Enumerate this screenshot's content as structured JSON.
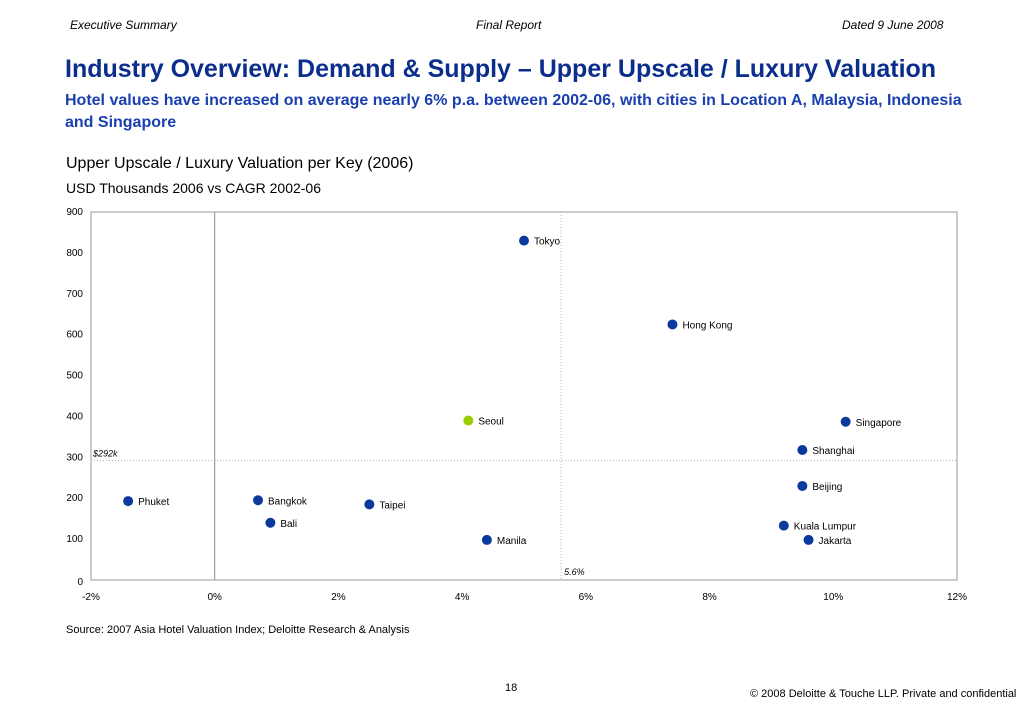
{
  "header": {
    "left": "Executive Summary",
    "center": "Final Report",
    "right": "Dated 9 June 2008"
  },
  "slide": {
    "title": "Industry Overview: Demand & Supply – Upper Upscale / Luxury Valuation",
    "subtitle": "Hotel values have increased on average nearly 6% p.a. between 2002-06, with cities in Location A, Malaysia, Indonesia and Singapore",
    "chart_title": "Upper Upscale / Luxury Valuation per Key (2006)",
    "chart_unit": "USD Thousands 2006 vs CAGR 2002-06"
  },
  "chart_data": {
    "type": "scatter",
    "title": "Upper Upscale / Luxury Valuation per Key (2006)",
    "subtitle": "USD Thousands 2006 vs CAGR 2002-06",
    "xlim": [
      -2,
      12
    ],
    "ylim": [
      0,
      900
    ],
    "x_ticks": [
      -2,
      0,
      2,
      4,
      6,
      8,
      10,
      12
    ],
    "x_tick_labels": [
      "-2%",
      "0%",
      "2%",
      "4%",
      "6%",
      "8%",
      "10%",
      "12%"
    ],
    "y_ticks": [
      0,
      100,
      200,
      300,
      400,
      500,
      600,
      700,
      800,
      900
    ],
    "y_tick_labels": [
      "0",
      "100",
      "200",
      "300",
      "400",
      "500",
      "600",
      "700",
      "800",
      "900"
    ],
    "grid": false,
    "reference_lines": [
      {
        "axis": "y",
        "value": 292,
        "label": "$292k"
      },
      {
        "axis": "x",
        "value": 5.6,
        "label": "5.6%"
      },
      {
        "axis": "x",
        "value": 0,
        "label": ""
      }
    ],
    "points": [
      {
        "label": "Tokyo",
        "x": 5.0,
        "y": 830,
        "color": "#0b3a9c"
      },
      {
        "label": "Hong Kong",
        "x": 7.4,
        "y": 625,
        "color": "#0b3a9c"
      },
      {
        "label": "Seoul",
        "x": 4.1,
        "y": 390,
        "color": "#99cc00"
      },
      {
        "label": "Singapore",
        "x": 10.2,
        "y": 387,
        "color": "#0b3a9c"
      },
      {
        "label": "Shanghai",
        "x": 9.5,
        "y": 318,
        "color": "#0b3a9c"
      },
      {
        "label": "Beijing",
        "x": 9.5,
        "y": 230,
        "color": "#0b3a9c"
      },
      {
        "label": "Phuket",
        "x": -1.4,
        "y": 193,
        "color": "#0b3a9c"
      },
      {
        "label": "Bangkok",
        "x": 0.7,
        "y": 195,
        "color": "#0b3a9c"
      },
      {
        "label": "Taipei",
        "x": 2.5,
        "y": 185,
        "color": "#0b3a9c"
      },
      {
        "label": "Bali",
        "x": 0.9,
        "y": 140,
        "color": "#0b3a9c"
      },
      {
        "label": "Kuala Lumpur",
        "x": 9.2,
        "y": 133,
        "color": "#0b3a9c"
      },
      {
        "label": "Manila",
        "x": 4.4,
        "y": 98,
        "color": "#0b3a9c"
      },
      {
        "label": "Jakarta",
        "x": 9.6,
        "y": 98,
        "color": "#0b3a9c"
      }
    ]
  },
  "footer": {
    "source": "Source:   2007 Asia Hotel Valuation Index; Deloitte Research & Analysis",
    "page_number": "18",
    "copyright": "© 2008 Deloitte & Touche LLP. Private and confidential"
  }
}
